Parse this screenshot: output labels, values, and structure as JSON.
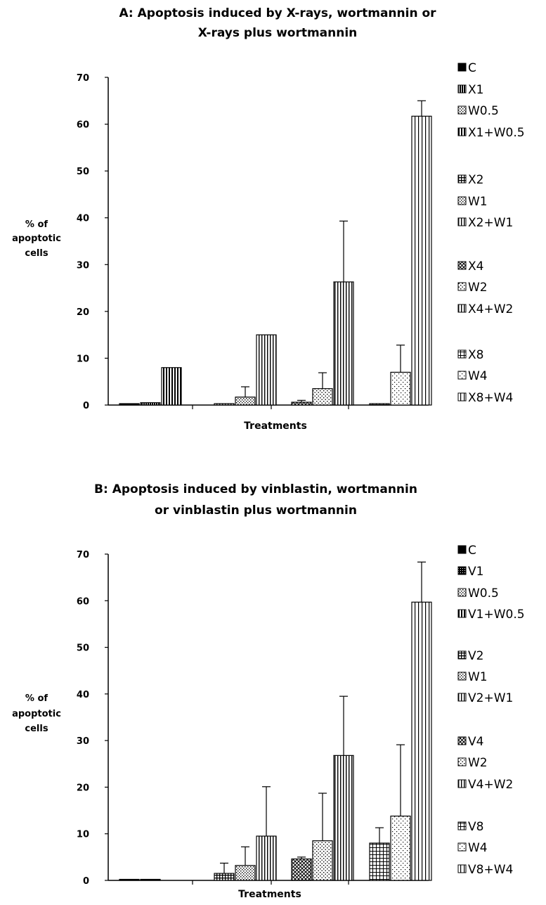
{
  "chart_data": [
    {
      "type": "bar",
      "title_lines": [
        "A:  Apoptosis induced by X-rays, wortmannin or",
        "X-rays plus wortmannin"
      ],
      "ylabel_lines": [
        "% of",
        "apoptotic",
        "cells"
      ],
      "xlabel": "Treatments",
      "ylim": [
        0,
        70
      ],
      "yticks": [
        0,
        10,
        20,
        30,
        40,
        50,
        60,
        70
      ],
      "grid": false,
      "legend_position": "right",
      "legend_groups": [
        [
          0,
          1,
          2,
          3
        ],
        [
          4,
          5,
          6
        ],
        [
          7,
          8,
          9
        ],
        [
          10,
          11,
          12
        ]
      ],
      "series": [
        {
          "name": "C",
          "pattern": "solid",
          "value": 0.3,
          "error": 0
        },
        {
          "name": "X1",
          "pattern": "dense-vertical",
          "value": 0.5,
          "error": 0
        },
        {
          "name": "W0.5",
          "pattern": "dots",
          "value": null,
          "error": null
        },
        {
          "name": "X1+W0.5",
          "pattern": "vertical-bold",
          "value": 8.0,
          "error": 0
        },
        {
          "name": "X2",
          "pattern": "crosshatch",
          "value": 0.3,
          "error": 0
        },
        {
          "name": "W1",
          "pattern": "dots",
          "value": 1.7,
          "error": 2.2
        },
        {
          "name": "X2+W1",
          "pattern": "vertical",
          "value": 15.0,
          "error": 0
        },
        {
          "name": "X4",
          "pattern": "diagonal-cross",
          "value": 0.6,
          "error": 0.4
        },
        {
          "name": "W2",
          "pattern": "dots-sparse",
          "value": 3.5,
          "error": 3.4
        },
        {
          "name": "X4+W2",
          "pattern": "vertical",
          "value": 26.3,
          "error": 13.0
        },
        {
          "name": "X8",
          "pattern": "grid",
          "value": 0.3,
          "error": 0
        },
        {
          "name": "W4",
          "pattern": "dots-fine",
          "value": 7.0,
          "error": 5.8
        },
        {
          "name": "X8+W4",
          "pattern": "vertical-wide",
          "value": 61.7,
          "error": 3.3
        }
      ]
    },
    {
      "type": "bar",
      "title_lines": [
        "B:  Apoptosis induced by vinblastin, wortmannin",
        "or vinblastin plus wortmannin"
      ],
      "ylabel_lines": [
        "% of",
        "apoptotic",
        "cells"
      ],
      "xlabel": "Treatments",
      "ylim": [
        0,
        70
      ],
      "yticks": [
        0,
        10,
        20,
        30,
        40,
        50,
        60,
        70
      ],
      "grid": false,
      "legend_position": "right",
      "legend_groups": [
        [
          0,
          1,
          2,
          3
        ],
        [
          4,
          5,
          6
        ],
        [
          7,
          8,
          9
        ],
        [
          10,
          11,
          12
        ]
      ],
      "series": [
        {
          "name": "C",
          "pattern": "solid",
          "value": 0.2,
          "error": 0
        },
        {
          "name": "V1",
          "pattern": "dense-check",
          "value": 0.2,
          "error": 0
        },
        {
          "name": "W0.5",
          "pattern": "dots",
          "value": null,
          "error": null
        },
        {
          "name": "V1+W0.5",
          "pattern": "vertical-bold",
          "value": null,
          "error": null
        },
        {
          "name": "V2",
          "pattern": "crosshatch",
          "value": 1.5,
          "error": 2.2
        },
        {
          "name": "W1",
          "pattern": "dots",
          "value": 3.2,
          "error": 4.0
        },
        {
          "name": "V2+W1",
          "pattern": "vertical",
          "value": 9.5,
          "error": 10.6
        },
        {
          "name": "V4",
          "pattern": "diagonal-cross",
          "value": 4.6,
          "error": 0.4
        },
        {
          "name": "W2",
          "pattern": "dots-sparse",
          "value": 8.5,
          "error": 10.2
        },
        {
          "name": "V4+W2",
          "pattern": "vertical",
          "value": 26.8,
          "error": 12.7
        },
        {
          "name": "V8",
          "pattern": "grid",
          "value": 8.0,
          "error": 3.3
        },
        {
          "name": "W4",
          "pattern": "dots-fine",
          "value": 13.8,
          "error": 15.3
        },
        {
          "name": "V8+W4",
          "pattern": "vertical-wide",
          "value": 59.7,
          "error": 8.6
        }
      ]
    }
  ]
}
